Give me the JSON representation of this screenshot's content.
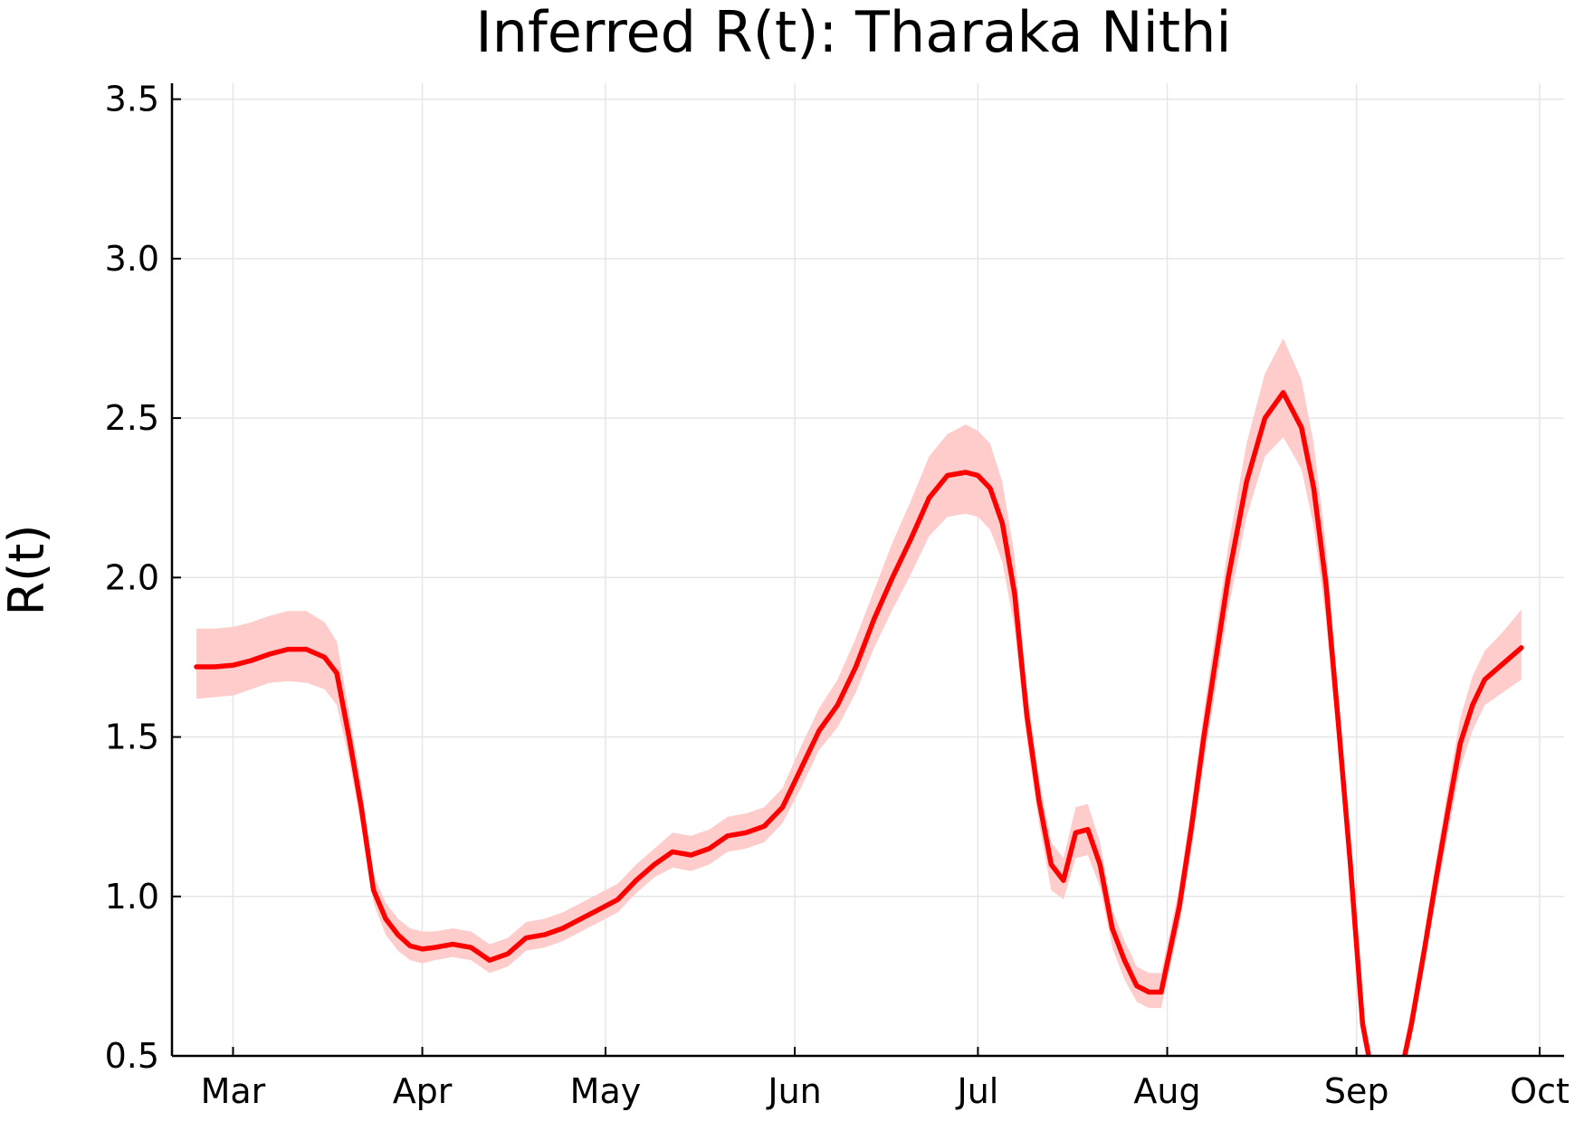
{
  "chart_data": {
    "type": "line",
    "title": "Inferred R(t): Tharaka Nithi",
    "xlabel": "",
    "ylabel": "R(t)",
    "ylim": [
      0.5,
      3.55
    ],
    "yticks": [
      0.5,
      1.0,
      1.5,
      2.0,
      2.5,
      3.0,
      3.5
    ],
    "ytick_labels": [
      "0.5",
      "1.0",
      "1.5",
      "2.0",
      "2.5",
      "3.0",
      "3.5"
    ],
    "xlim": [
      "2020-02-20",
      "2020-10-05"
    ],
    "xticks": [
      "2020-03-01",
      "2020-04-01",
      "2020-05-01",
      "2020-06-01",
      "2020-07-01",
      "2020-08-01",
      "2020-09-01",
      "2020-10-01"
    ],
    "xtick_labels": [
      "Mar",
      "Apr",
      "May",
      "Jun",
      "Jul",
      "Aug",
      "Sep",
      "Oct"
    ],
    "grid": true,
    "legend": "none",
    "colors": {
      "line": "#ff0000",
      "band": "#ffcccc"
    },
    "series": [
      {
        "x": [
          "2020-02-24",
          "2020-02-27",
          "2020-03-01",
          "2020-03-04",
          "2020-03-07",
          "2020-03-10",
          "2020-03-13",
          "2020-03-16",
          "2020-03-18",
          "2020-03-20",
          "2020-03-22",
          "2020-03-24",
          "2020-03-26",
          "2020-03-28",
          "2020-03-30",
          "2020-04-01",
          "2020-04-03",
          "2020-04-06",
          "2020-04-09",
          "2020-04-12",
          "2020-04-15",
          "2020-04-18",
          "2020-04-21",
          "2020-04-24",
          "2020-04-27",
          "2020-04-30",
          "2020-05-03",
          "2020-05-06",
          "2020-05-09",
          "2020-05-12",
          "2020-05-15",
          "2020-05-18",
          "2020-05-21",
          "2020-05-24",
          "2020-05-27",
          "2020-05-30",
          "2020-06-02",
          "2020-06-05",
          "2020-06-08",
          "2020-06-11",
          "2020-06-14",
          "2020-06-17",
          "2020-06-20",
          "2020-06-23",
          "2020-06-26",
          "2020-06-29",
          "2020-07-01",
          "2020-07-03",
          "2020-07-05",
          "2020-07-07",
          "2020-07-09",
          "2020-07-11",
          "2020-07-13",
          "2020-07-15",
          "2020-07-17",
          "2020-07-19",
          "2020-07-21",
          "2020-07-23",
          "2020-07-25",
          "2020-07-27",
          "2020-07-29",
          "2020-07-31",
          "2020-08-03",
          "2020-08-05",
          "2020-08-07",
          "2020-08-09",
          "2020-08-11",
          "2020-08-14",
          "2020-08-17",
          "2020-08-20",
          "2020-08-23",
          "2020-08-25",
          "2020-08-27",
          "2020-08-29",
          "2020-08-31",
          "2020-09-02",
          "2020-09-04",
          "2020-09-06",
          "2020-09-08",
          "2020-09-10",
          "2020-09-12",
          "2020-09-14",
          "2020-09-16",
          "2020-09-18",
          "2020-09-20",
          "2020-09-22",
          "2020-09-25",
          "2020-09-28"
        ],
        "y": [
          1.72,
          1.72,
          1.725,
          1.74,
          1.76,
          1.775,
          1.775,
          1.75,
          1.7,
          1.5,
          1.28,
          1.02,
          0.93,
          0.88,
          0.845,
          0.835,
          0.84,
          0.85,
          0.84,
          0.8,
          0.82,
          0.87,
          0.88,
          0.9,
          0.93,
          0.96,
          0.99,
          1.05,
          1.1,
          1.14,
          1.13,
          1.15,
          1.19,
          1.2,
          1.22,
          1.28,
          1.4,
          1.52,
          1.6,
          1.72,
          1.87,
          2.0,
          2.12,
          2.25,
          2.32,
          2.33,
          2.32,
          2.28,
          2.17,
          1.95,
          1.57,
          1.3,
          1.1,
          1.05,
          1.2,
          1.21,
          1.1,
          0.9,
          0.8,
          0.72,
          0.7,
          0.7,
          0.97,
          1.22,
          1.5,
          1.75,
          2.0,
          2.3,
          2.5,
          2.58,
          2.47,
          2.28,
          1.98,
          1.55,
          1.1,
          0.6,
          0.4,
          0.3,
          0.42,
          0.6,
          0.82,
          1.05,
          1.27,
          1.48,
          1.6,
          1.68,
          1.73,
          1.78
        ],
        "lower": [
          1.62,
          1.625,
          1.63,
          1.65,
          1.67,
          1.675,
          1.67,
          1.65,
          1.6,
          1.43,
          1.22,
          0.98,
          0.88,
          0.83,
          0.8,
          0.79,
          0.8,
          0.81,
          0.8,
          0.76,
          0.78,
          0.83,
          0.84,
          0.86,
          0.89,
          0.92,
          0.95,
          1.01,
          1.06,
          1.09,
          1.08,
          1.1,
          1.14,
          1.15,
          1.17,
          1.23,
          1.34,
          1.46,
          1.53,
          1.64,
          1.78,
          1.9,
          2.01,
          2.13,
          2.19,
          2.2,
          2.19,
          2.15,
          2.05,
          1.84,
          1.49,
          1.23,
          1.02,
          0.99,
          1.12,
          1.13,
          1.03,
          0.84,
          0.74,
          0.67,
          0.65,
          0.65,
          0.91,
          1.15,
          1.42,
          1.66,
          1.9,
          2.19,
          2.38,
          2.44,
          2.34,
          2.16,
          1.87,
          1.46,
          1.03,
          0.55,
          0.37,
          0.27,
          0.39,
          0.56,
          0.77,
          0.99,
          1.2,
          1.4,
          1.52,
          1.6,
          1.64,
          1.68
        ],
        "upper": [
          1.84,
          1.84,
          1.845,
          1.86,
          1.88,
          1.895,
          1.895,
          1.86,
          1.8,
          1.58,
          1.35,
          1.07,
          0.98,
          0.93,
          0.9,
          0.89,
          0.89,
          0.9,
          0.89,
          0.85,
          0.87,
          0.92,
          0.93,
          0.95,
          0.98,
          1.01,
          1.04,
          1.1,
          1.15,
          1.2,
          1.19,
          1.21,
          1.25,
          1.26,
          1.28,
          1.34,
          1.47,
          1.59,
          1.68,
          1.81,
          1.96,
          2.11,
          2.24,
          2.38,
          2.45,
          2.48,
          2.46,
          2.42,
          2.3,
          2.07,
          1.65,
          1.37,
          1.17,
          1.12,
          1.28,
          1.29,
          1.17,
          0.96,
          0.86,
          0.78,
          0.76,
          0.76,
          1.03,
          1.29,
          1.58,
          1.84,
          2.1,
          2.42,
          2.64,
          2.75,
          2.62,
          2.42,
          2.1,
          1.64,
          1.17,
          0.65,
          0.44,
          0.34,
          0.46,
          0.65,
          0.87,
          1.11,
          1.34,
          1.56,
          1.69,
          1.77,
          1.83,
          1.9
        ]
      }
    ]
  }
}
